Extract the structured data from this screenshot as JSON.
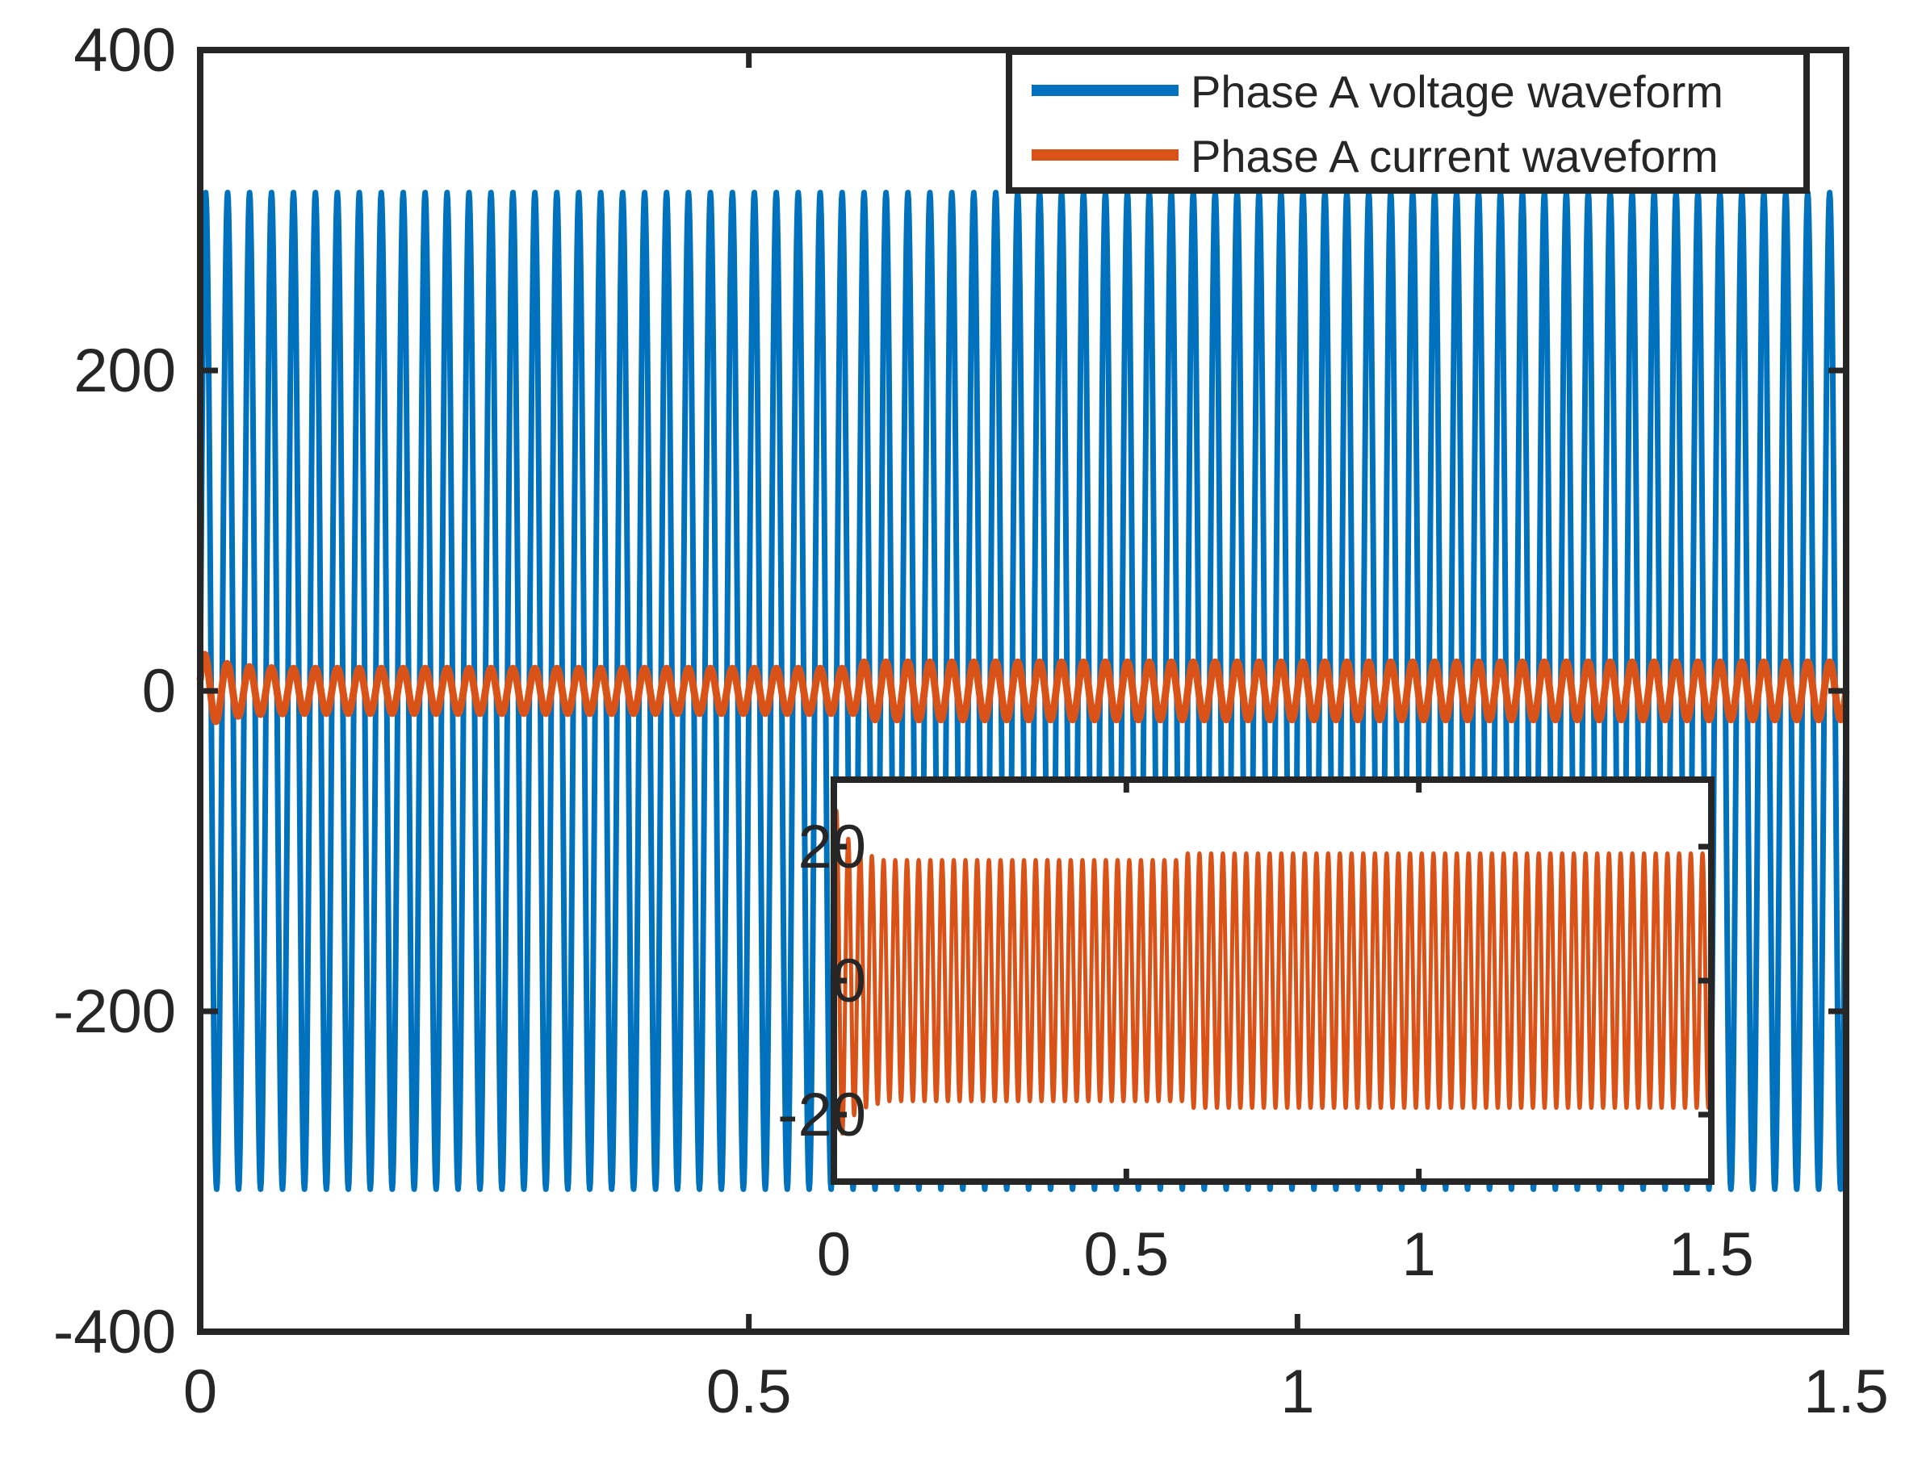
{
  "chart_data": [
    {
      "type": "line",
      "title": "",
      "xlabel": "",
      "ylabel": "",
      "xlim": [
        0,
        1.5
      ],
      "ylim": [
        -400,
        400
      ],
      "xticks": [
        "0",
        "0.5",
        "1",
        "1.5"
      ],
      "yticks": [
        "-400",
        "-200",
        "0",
        "200",
        "400"
      ],
      "grid": false,
      "legend_position": "top-right",
      "series": [
        {
          "name": "Phase A voltage waveform",
          "color": "#0072BD",
          "frequency_hz": 50,
          "amplitude": 311,
          "x_range": [
            0,
            1.5
          ]
        },
        {
          "name": "Phase A current waveform",
          "color": "#D95319",
          "frequency_hz": 50,
          "amplitude_initial": 14,
          "amplitude_final": 18,
          "amplitude_step_time": 0.6,
          "startup_peaks": [
            {
              "x": 0.02,
              "y": 25
            },
            {
              "x": 0.035,
              "y": 28
            },
            {
              "x": 0.03,
              "y": -28
            }
          ],
          "x_range": [
            0,
            1.5
          ]
        }
      ]
    },
    {
      "type": "line",
      "title": "",
      "xlabel": "",
      "ylabel": "",
      "xlim": [
        0,
        1.5
      ],
      "ylim": [
        -30,
        30
      ],
      "xticks": [
        "0",
        "0.5",
        "1",
        "1.5"
      ],
      "yticks": [
        "-20",
        "0",
        "20"
      ],
      "grid": false,
      "series": [
        {
          "name": "Phase A current waveform",
          "color": "#D95319",
          "frequency_hz": 50,
          "amplitude_initial": 18,
          "amplitude_final": 19,
          "amplitude_step_time": 0.6,
          "startup_peaks": [
            {
              "x": 0.015,
              "y": 24
            },
            {
              "x": 0.045,
              "y": 26
            },
            {
              "x": 0.03,
              "y": -29
            }
          ],
          "x_range": [
            0,
            1.5
          ]
        }
      ]
    }
  ]
}
